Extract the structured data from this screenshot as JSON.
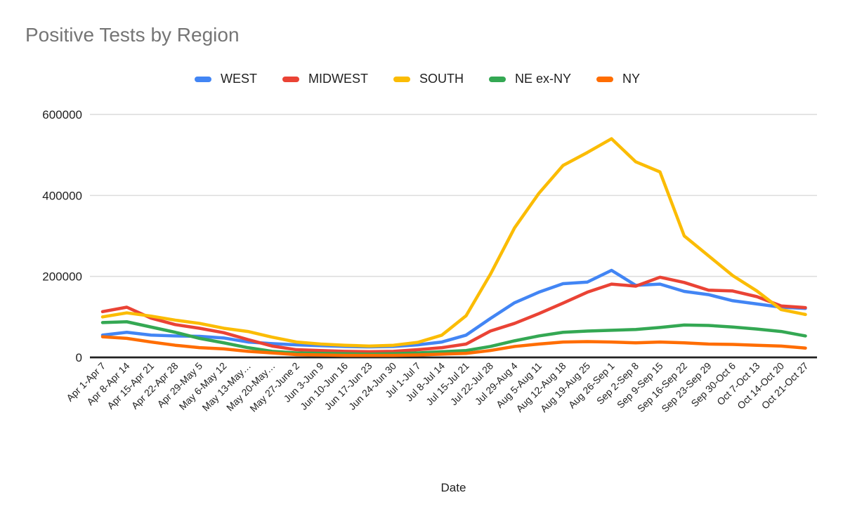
{
  "chart": {
    "title": "Positive Tests by Region"
  },
  "chart_data": {
    "type": "line",
    "title": "Positive Tests by Region",
    "xlabel": "Date",
    "ylabel": "",
    "ylim": [
      0,
      600000
    ],
    "yticks": [
      0,
      200000,
      400000,
      600000
    ],
    "grid": true,
    "legend_position": "top",
    "categories": [
      "Apr 1-Apr 7",
      "Apr 8-Apr 14",
      "Apr 15-Apr 21",
      "Apr 22-Apr 28",
      "Apr 29-May 5",
      "May 6-May 12",
      "May 13-May…",
      "May 20-May…",
      "May 27-June 2",
      "Jun 3-Jun 9",
      "Jun 10-Jun 16",
      "Jun 17-Jun 23",
      "Jun 24-Jun 30",
      "Jul 1-Jul 7",
      "Jul 8-Jul 14",
      "Jul 15-Jul 21",
      "Jul 22-Jul 28",
      "Jul 29-Aug 4",
      "Aug 5-Aug 11",
      "Aug 12-Aug 18",
      "Aug 19-Aug 25",
      "Aug 26-Sep 1",
      "Sep 2-Sep 8",
      "Sep 9-Sep 15",
      "Sep 16-Sep 22",
      "Sep 23-Sep 29",
      "Sep 30-Oct 6",
      "Oct 7-Oct 13",
      "Oct 14-Oct 20",
      "Oct 21-Oct 27"
    ],
    "series": [
      {
        "name": "WEST",
        "color": "#4285F4",
        "values": [
          55000,
          62000,
          55000,
          53000,
          52000,
          48000,
          38000,
          34000,
          31000,
          29000,
          27000,
          26000,
          27000,
          31000,
          38000,
          55000,
          96000,
          135000,
          161000,
          182000,
          186000,
          215000,
          178000,
          181000,
          163000,
          155000,
          140000,
          132000,
          124000,
          121000
        ]
      },
      {
        "name": "MIDWEST",
        "color": "#EA4335",
        "values": [
          113000,
          124000,
          97000,
          81000,
          72000,
          61000,
          44000,
          28000,
          19000,
          17000,
          15000,
          14000,
          15000,
          19000,
          24000,
          33000,
          65000,
          84000,
          108000,
          134000,
          161000,
          181000,
          176000,
          198000,
          185000,
          166000,
          164000,
          150000,
          127000,
          123000
        ]
      },
      {
        "name": "SOUTH",
        "color": "#FBBC04",
        "values": [
          100000,
          110000,
          102000,
          92000,
          84000,
          72000,
          64000,
          50000,
          38000,
          33000,
          30000,
          28000,
          30000,
          37000,
          55000,
          103000,
          205000,
          320000,
          405000,
          474000,
          506000,
          540000,
          483000,
          458000,
          300000,
          251000,
          202000,
          164000,
          118000,
          106000
        ]
      },
      {
        "name": "NE ex-NY",
        "color": "#34A853",
        "values": [
          86000,
          88000,
          75000,
          62000,
          47000,
          36000,
          24000,
          15000,
          11000,
          10000,
          9000,
          8000,
          9000,
          11000,
          14000,
          17000,
          27000,
          41000,
          53000,
          62000,
          65000,
          67000,
          69000,
          74000,
          80000,
          79000,
          75000,
          70000,
          64000,
          53000
        ]
      },
      {
        "name": "NY",
        "color": "#FF6D01",
        "values": [
          51000,
          47000,
          38000,
          30000,
          24000,
          21000,
          15000,
          11000,
          7000,
          6000,
          5000,
          5000,
          5000,
          6000,
          8000,
          10000,
          17000,
          27000,
          33000,
          38000,
          39000,
          38000,
          36000,
          38000,
          36000,
          33000,
          32000,
          30000,
          28000,
          23000
        ]
      }
    ]
  }
}
